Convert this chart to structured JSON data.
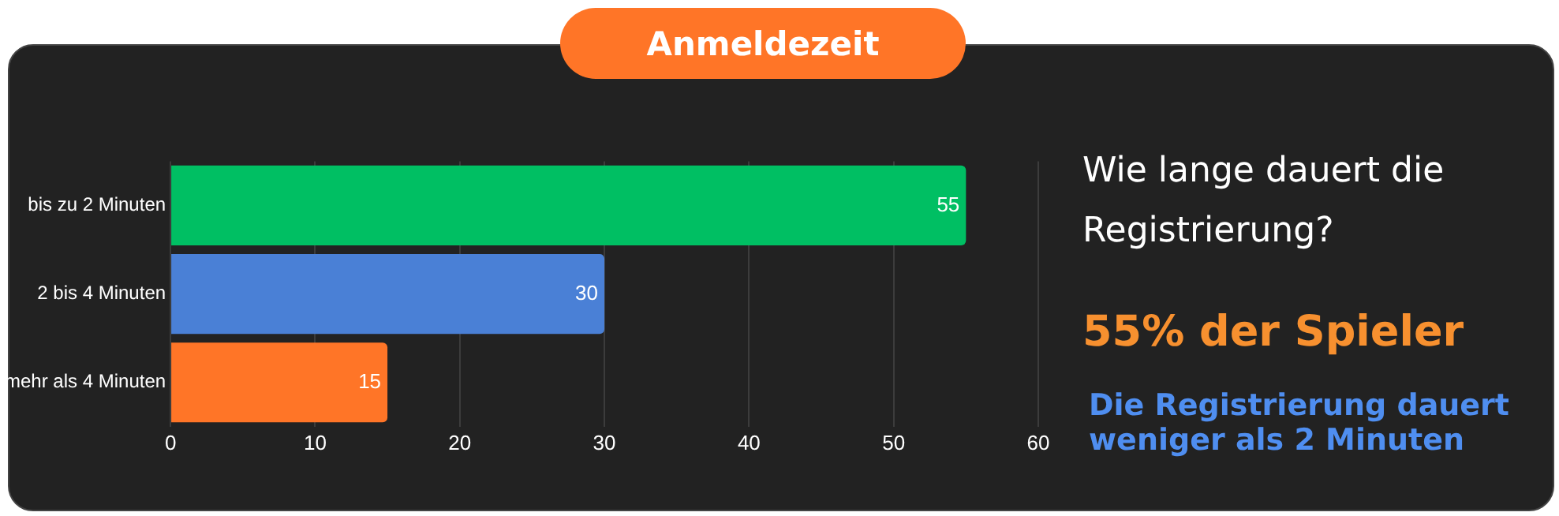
{
  "chart_data": {
    "type": "bar",
    "orientation": "horizontal",
    "title": "Anmeldezeit",
    "categories": [
      "bis zu 2 Minuten",
      "2 bis 4 Minuten",
      "mehr als 4 Minuten"
    ],
    "values": [
      55,
      30,
      15
    ],
    "colors": [
      "#00bf63",
      "#4a80d6",
      "#ff7527"
    ],
    "xlim": [
      0,
      60
    ],
    "xticks": [
      0,
      10,
      20,
      30,
      40,
      50,
      60
    ],
    "grid": "x",
    "data_labels": true,
    "legend": false,
    "annotations": [
      "Wie lange dauert die Registrierung?",
      "55% der Spieler",
      "Die Registrierung dauert weniger als 2 Minuten"
    ]
  }
}
